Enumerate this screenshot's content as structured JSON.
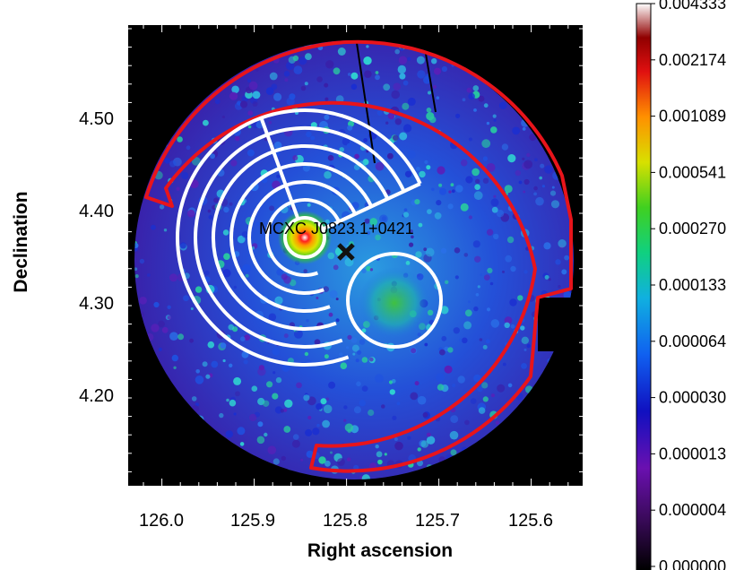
{
  "image": {
    "source_label": "MCXC J0823.1+0421",
    "xlabel": "Right ascension",
    "ylabel": "Declination",
    "x_ticks": [
      "126.0",
      "125.9",
      "125.8",
      "125.7",
      "125.6"
    ],
    "y_ticks": [
      "4.50",
      "4.40",
      "4.30",
      "4.20"
    ],
    "colorbar_ticks": [
      "0.004333",
      "0.002174",
      "0.001089",
      "0.000541",
      "0.000270",
      "0.000133",
      "0.000064",
      "0.000030",
      "0.000013",
      "0.000004",
      "0.000000"
    ],
    "colormap": "rainbow",
    "region_colors": {
      "outer_boundary": "#e8141b",
      "annuli": "#ffffff",
      "background": "#ffffff",
      "marker": "#111111"
    }
  }
}
